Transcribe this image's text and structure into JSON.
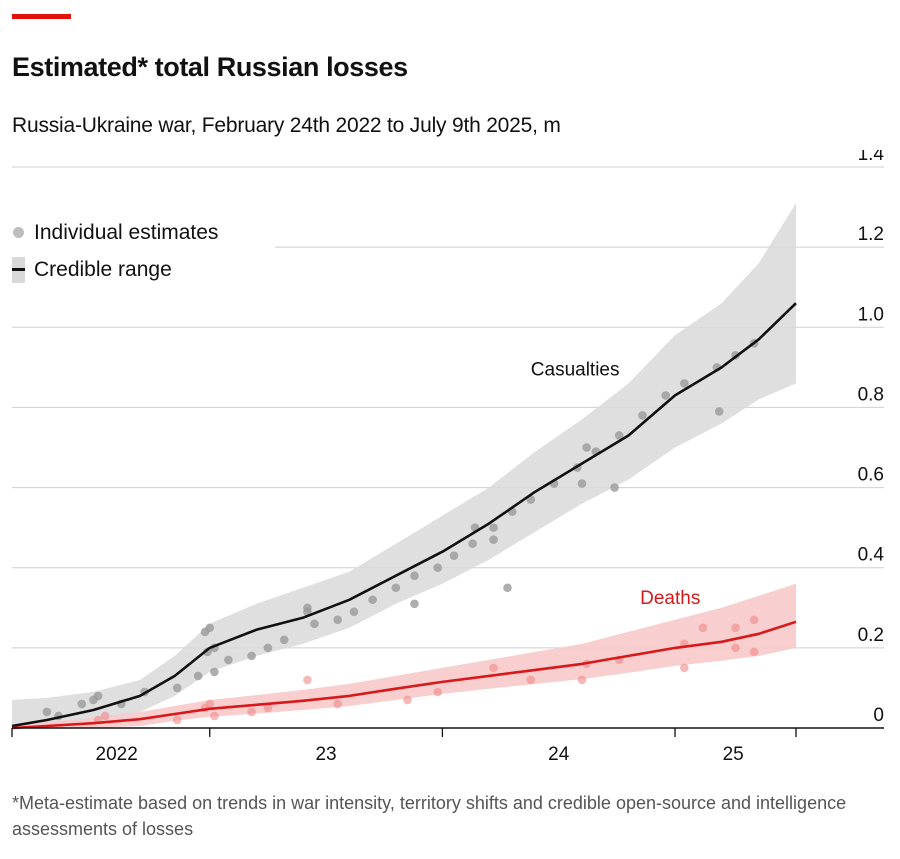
{
  "header": {
    "title": "Estimated* total Russian losses",
    "subtitle": "Russia-Ukraine war, February 24th 2022 to July 9th 2025, m"
  },
  "footnote": "*Meta-estimate based on trends in war intensity, territory shifts and credible open-source and intelligence assessments of losses",
  "colors": {
    "accent": "#e3120b",
    "casualties_line": "#111111",
    "casualties_band": "#d9d9d9",
    "casualties_dots": "#9a9a9a",
    "deaths_line": "#d7191c",
    "deaths_band": "#f7c9c9",
    "deaths_dots": "#f08a8a"
  },
  "legend": {
    "items": [
      {
        "label": "Individual estimates",
        "icon": "dot"
      },
      {
        "label": "Credible range",
        "icon": "line-with-band"
      }
    ]
  },
  "chart_data": {
    "type": "line",
    "title": "Estimated* total Russian losses",
    "subtitle": "Russia-Ukraine war, February 24th 2022 to July 9th 2025, m",
    "xlim": [
      2022.15,
      2025.52
    ],
    "ylim": [
      0,
      1.4
    ],
    "y_ticks": [
      0,
      0.2,
      0.4,
      0.6,
      0.8,
      1.0,
      1.2,
      1.4
    ],
    "y_tick_labels": [
      "0",
      "0.2",
      "0.4",
      "0.6",
      "0.8",
      "1.0",
      "1.2",
      "1.4"
    ],
    "x_ticks": [
      2022.15,
      2023.0,
      2024.0,
      2025.0,
      2025.52
    ],
    "x_tick_labels": [
      {
        "x": 2022.6,
        "label": "2022"
      },
      {
        "x": 2023.5,
        "label": "23"
      },
      {
        "x": 2024.5,
        "label": "24"
      },
      {
        "x": 2025.25,
        "label": "25"
      }
    ],
    "grid": true,
    "legend_position": "top-left",
    "series": [
      {
        "name": "Casualties",
        "x": [
          2022.15,
          2022.3,
          2022.5,
          2022.7,
          2022.85,
          2023.0,
          2023.2,
          2023.4,
          2023.6,
          2023.8,
          2024.0,
          2024.2,
          2024.4,
          2024.6,
          2024.8,
          2025.0,
          2025.2,
          2025.36,
          2025.52
        ],
        "values": [
          0.005,
          0.02,
          0.045,
          0.08,
          0.13,
          0.2,
          0.245,
          0.275,
          0.32,
          0.38,
          0.44,
          0.51,
          0.59,
          0.66,
          0.73,
          0.83,
          0.9,
          0.97,
          1.06
        ],
        "lower": [
          0.0,
          0.0,
          0.02,
          0.04,
          0.08,
          0.14,
          0.18,
          0.21,
          0.25,
          0.31,
          0.36,
          0.42,
          0.49,
          0.56,
          0.62,
          0.7,
          0.76,
          0.82,
          0.86
        ],
        "upper": [
          0.07,
          0.075,
          0.09,
          0.12,
          0.18,
          0.26,
          0.31,
          0.35,
          0.39,
          0.46,
          0.53,
          0.6,
          0.69,
          0.77,
          0.86,
          0.98,
          1.06,
          1.16,
          1.31
        ],
        "estimates": [
          {
            "x": 2022.3,
            "y": 0.04
          },
          {
            "x": 2022.35,
            "y": 0.03
          },
          {
            "x": 2022.45,
            "y": 0.06
          },
          {
            "x": 2022.5,
            "y": 0.07
          },
          {
            "x": 2022.52,
            "y": 0.08
          },
          {
            "x": 2022.62,
            "y": 0.06
          },
          {
            "x": 2022.72,
            "y": 0.09
          },
          {
            "x": 2022.86,
            "y": 0.1
          },
          {
            "x": 2022.95,
            "y": 0.13
          },
          {
            "x": 2022.98,
            "y": 0.24
          },
          {
            "x": 2023.0,
            "y": 0.25
          },
          {
            "x": 2022.99,
            "y": 0.19
          },
          {
            "x": 2023.02,
            "y": 0.2
          },
          {
            "x": 2023.02,
            "y": 0.14
          },
          {
            "x": 2023.08,
            "y": 0.17
          },
          {
            "x": 2023.18,
            "y": 0.18
          },
          {
            "x": 2023.25,
            "y": 0.2
          },
          {
            "x": 2023.32,
            "y": 0.22
          },
          {
            "x": 2023.42,
            "y": 0.3
          },
          {
            "x": 2023.42,
            "y": 0.29
          },
          {
            "x": 2023.45,
            "y": 0.26
          },
          {
            "x": 2023.55,
            "y": 0.27
          },
          {
            "x": 2023.62,
            "y": 0.29
          },
          {
            "x": 2023.7,
            "y": 0.32
          },
          {
            "x": 2023.8,
            "y": 0.35
          },
          {
            "x": 2023.88,
            "y": 0.31
          },
          {
            "x": 2023.88,
            "y": 0.38
          },
          {
            "x": 2023.98,
            "y": 0.4
          },
          {
            "x": 2024.05,
            "y": 0.43
          },
          {
            "x": 2024.13,
            "y": 0.46
          },
          {
            "x": 2024.14,
            "y": 0.5
          },
          {
            "x": 2024.22,
            "y": 0.47
          },
          {
            "x": 2024.22,
            "y": 0.5
          },
          {
            "x": 2024.28,
            "y": 0.35
          },
          {
            "x": 2024.3,
            "y": 0.54
          },
          {
            "x": 2024.38,
            "y": 0.57
          },
          {
            "x": 2024.48,
            "y": 0.61
          },
          {
            "x": 2024.58,
            "y": 0.65
          },
          {
            "x": 2024.6,
            "y": 0.61
          },
          {
            "x": 2024.62,
            "y": 0.7
          },
          {
            "x": 2024.66,
            "y": 0.69
          },
          {
            "x": 2024.74,
            "y": 0.6
          },
          {
            "x": 2024.76,
            "y": 0.73
          },
          {
            "x": 2024.86,
            "y": 0.78
          },
          {
            "x": 2024.96,
            "y": 0.83
          },
          {
            "x": 2025.04,
            "y": 0.86
          },
          {
            "x": 2025.18,
            "y": 0.9
          },
          {
            "x": 2025.19,
            "y": 0.79
          },
          {
            "x": 2025.26,
            "y": 0.93
          },
          {
            "x": 2025.34,
            "y": 0.96
          }
        ]
      },
      {
        "name": "Deaths",
        "x": [
          2022.15,
          2022.3,
          2022.5,
          2022.7,
          2022.85,
          2023.0,
          2023.2,
          2023.4,
          2023.6,
          2023.8,
          2024.0,
          2024.2,
          2024.4,
          2024.6,
          2024.8,
          2025.0,
          2025.2,
          2025.36,
          2025.52
        ],
        "values": [
          0.0,
          0.005,
          0.012,
          0.022,
          0.035,
          0.048,
          0.058,
          0.068,
          0.08,
          0.098,
          0.115,
          0.13,
          0.145,
          0.16,
          0.18,
          0.2,
          0.215,
          0.235,
          0.265
        ],
        "lower": [
          0.0,
          0.0,
          0.0,
          0.005,
          0.018,
          0.028,
          0.036,
          0.045,
          0.055,
          0.07,
          0.085,
          0.098,
          0.11,
          0.122,
          0.138,
          0.155,
          0.168,
          0.18,
          0.2
        ],
        "upper": [
          0.005,
          0.015,
          0.025,
          0.04,
          0.055,
          0.07,
          0.082,
          0.095,
          0.11,
          0.13,
          0.15,
          0.17,
          0.19,
          0.21,
          0.24,
          0.27,
          0.3,
          0.33,
          0.36
        ],
        "estimates": [
          {
            "x": 2022.52,
            "y": 0.02
          },
          {
            "x": 2022.55,
            "y": 0.03
          },
          {
            "x": 2022.86,
            "y": 0.02
          },
          {
            "x": 2022.98,
            "y": 0.05
          },
          {
            "x": 2023.0,
            "y": 0.06
          },
          {
            "x": 2023.02,
            "y": 0.03
          },
          {
            "x": 2023.18,
            "y": 0.04
          },
          {
            "x": 2023.25,
            "y": 0.05
          },
          {
            "x": 2023.42,
            "y": 0.12
          },
          {
            "x": 2023.55,
            "y": 0.06
          },
          {
            "x": 2023.85,
            "y": 0.07
          },
          {
            "x": 2023.98,
            "y": 0.09
          },
          {
            "x": 2024.22,
            "y": 0.15
          },
          {
            "x": 2024.38,
            "y": 0.12
          },
          {
            "x": 2024.6,
            "y": 0.12
          },
          {
            "x": 2024.62,
            "y": 0.16
          },
          {
            "x": 2024.76,
            "y": 0.17
          },
          {
            "x": 2025.04,
            "y": 0.15
          },
          {
            "x": 2025.04,
            "y": 0.21
          },
          {
            "x": 2025.12,
            "y": 0.25
          },
          {
            "x": 2025.26,
            "y": 0.2
          },
          {
            "x": 2025.26,
            "y": 0.25
          },
          {
            "x": 2025.34,
            "y": 0.19
          },
          {
            "x": 2025.34,
            "y": 0.27
          }
        ]
      }
    ],
    "annotations": [
      {
        "text": "Casualties",
        "x": 2024.38,
        "y": 0.88,
        "series": "Casualties"
      },
      {
        "text": "Deaths",
        "x": 2024.85,
        "y": 0.31,
        "series": "Deaths"
      }
    ]
  }
}
